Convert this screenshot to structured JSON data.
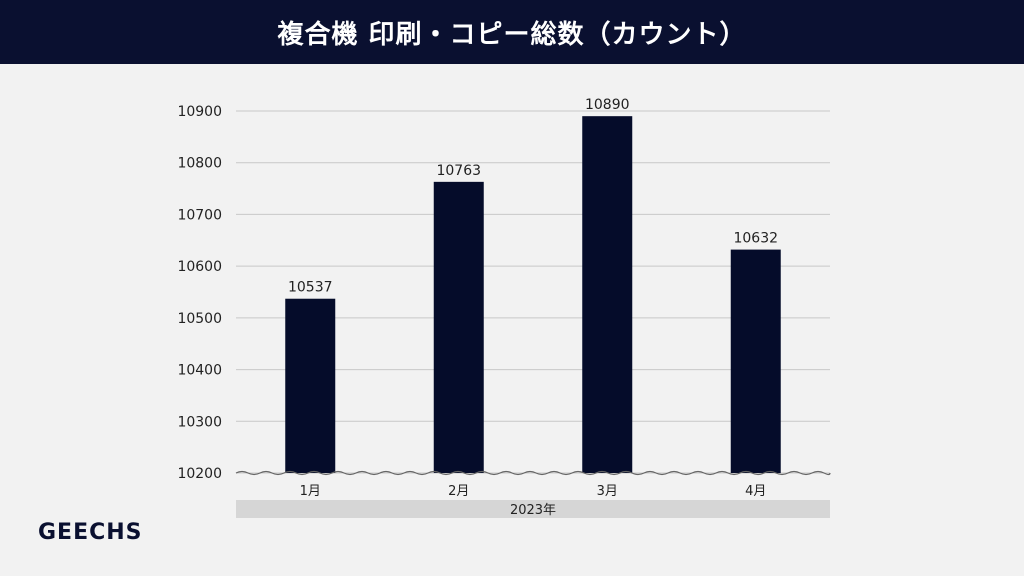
{
  "header": {
    "title": "複合機 印刷・コピー総数（カウント）"
  },
  "logo": {
    "text": "GEECHS"
  },
  "colors": {
    "header_bg": "#0a1030",
    "bar": "#050c2a",
    "grid": "#c8c8c8",
    "axis_band": "#d6d6d6"
  },
  "chart_data": {
    "type": "bar",
    "title": "複合機 印刷・コピー総数（カウント）",
    "categories": [
      "1月",
      "2月",
      "3月",
      "4月"
    ],
    "group_label": "2023年",
    "values": [
      10537,
      10763,
      10890,
      10632
    ],
    "data_labels": [
      "10537",
      "10763",
      "10890",
      "10632"
    ],
    "ylim": [
      10200,
      10900
    ],
    "yticks": [
      10200,
      10300,
      10400,
      10500,
      10600,
      10700,
      10800,
      10900
    ],
    "ytick_labels": [
      "10200",
      "10300",
      "10400",
      "10500",
      "10600",
      "10700",
      "10800",
      "10900"
    ],
    "axis_break": true,
    "grid": true,
    "legend": "none"
  }
}
